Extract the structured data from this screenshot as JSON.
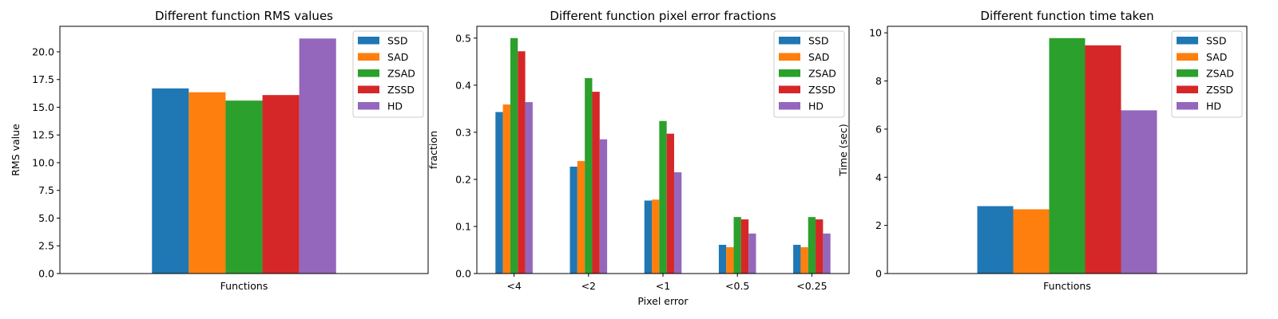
{
  "colors": [
    "#1f77b4",
    "#ff7f0e",
    "#2ca02c",
    "#d62728",
    "#9467bd"
  ],
  "chart_data": [
    {
      "type": "bar",
      "title": "Different function RMS values",
      "xlabel": "",
      "ylabel": "RMS value",
      "categories": [
        "Functions"
      ],
      "series": [
        {
          "name": "SSD",
          "values": [
            16.7
          ]
        },
        {
          "name": "SAD",
          "values": [
            16.35
          ]
        },
        {
          "name": "ZSAD",
          "values": [
            15.6
          ]
        },
        {
          "name": "ZSSD",
          "values": [
            16.1
          ]
        },
        {
          "name": "HD",
          "values": [
            21.2
          ]
        }
      ],
      "ylim": [
        0,
        22.3
      ],
      "yticks": [
        0,
        2.5,
        5,
        7.5,
        10,
        12.5,
        15,
        17.5,
        20
      ],
      "ytick_labels": [
        "0.0",
        "2.5",
        "5.0",
        "7.5",
        "10.0",
        "12.5",
        "15.0",
        "17.5",
        "20.0"
      ],
      "grid": false,
      "legend_position": "top-right"
    },
    {
      "type": "bar",
      "title": "Different function pixel error fractions",
      "xlabel": "Pixel error",
      "ylabel": "fraction",
      "categories": [
        "<4",
        "<2",
        "<1",
        "<0.5",
        "<0.25"
      ],
      "series": [
        {
          "name": "SSD",
          "values": [
            0.343,
            0.227,
            0.155,
            0.061,
            0.061
          ]
        },
        {
          "name": "SAD",
          "values": [
            0.359,
            0.239,
            0.157,
            0.056,
            0.056
          ]
        },
        {
          "name": "ZSAD",
          "values": [
            0.5,
            0.415,
            0.324,
            0.12,
            0.12
          ]
        },
        {
          "name": "ZSSD",
          "values": [
            0.472,
            0.386,
            0.297,
            0.115,
            0.115
          ]
        },
        {
          "name": "HD",
          "values": [
            0.364,
            0.285,
            0.215,
            0.085,
            0.085
          ]
        }
      ],
      "ylim": [
        0,
        0.525
      ],
      "yticks": [
        0,
        0.1,
        0.2,
        0.3,
        0.4,
        0.5
      ],
      "ytick_labels": [
        "0.0",
        "0.1",
        "0.2",
        "0.3",
        "0.4",
        "0.5"
      ],
      "grid": false,
      "legend_position": "top-right"
    },
    {
      "type": "bar",
      "title": "Different function time taken",
      "xlabel": "",
      "ylabel": "Time (sec)",
      "categories": [
        "Functions"
      ],
      "series": [
        {
          "name": "SSD",
          "values": [
            2.8
          ]
        },
        {
          "name": "SAD",
          "values": [
            2.67
          ]
        },
        {
          "name": "ZSAD",
          "values": [
            9.78
          ]
        },
        {
          "name": "ZSSD",
          "values": [
            9.48
          ]
        },
        {
          "name": "HD",
          "values": [
            6.78
          ]
        }
      ],
      "ylim": [
        0,
        10.27
      ],
      "yticks": [
        0,
        2,
        4,
        6,
        8,
        10
      ],
      "ytick_labels": [
        "0",
        "2",
        "4",
        "6",
        "8",
        "10"
      ],
      "grid": false,
      "legend_position": "top-right"
    }
  ]
}
